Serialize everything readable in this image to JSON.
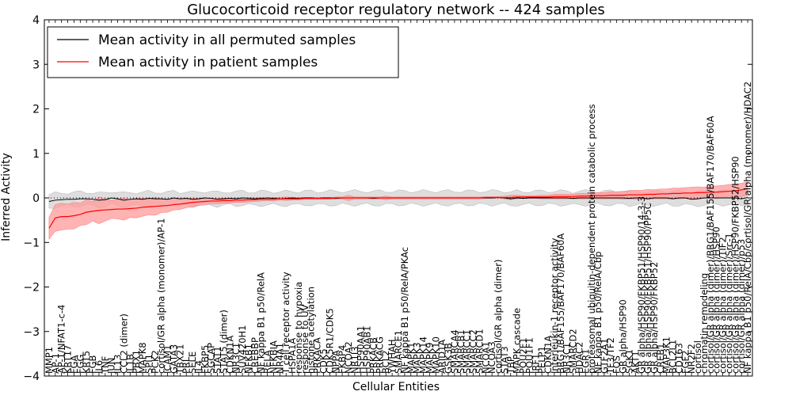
{
  "chart_data": {
    "type": "line",
    "title": "Glucocorticoid receptor regulatory network -- 424 samples",
    "xlabel": "Cellular Entities",
    "ylabel": "Inferred Activity",
    "ylim": [
      -4,
      4
    ],
    "yticks": [
      -4,
      -3,
      -2,
      -1,
      0,
      1,
      2,
      3,
      4
    ],
    "grid": false,
    "legend_position": "top-left",
    "legend": [
      "Mean activity in all permuted samples",
      "Mean activity in patient samples"
    ],
    "colors": {
      "permuted": "#000000",
      "patient": "#ff0000",
      "permuted_band": "#c8c8c8",
      "patient_band": "#ff9a9a"
    },
    "categories": [
      "MMP1",
      "AP-1",
      "AP-1/NFAT1-c-4",
      "KRT17",
      "FGA",
      "FGG",
      "KRT5",
      "FGB",
      "IL6",
      "TNF",
      "JUN",
      "IL13",
      "CCL2 (dimer)",
      "IL1B",
      "PBX1",
      "MAPK8",
      "SPI1",
      "PCK2",
      "cortisol/GR alpha (monomer)/AP-1",
      "ICAM1",
      "GATA3",
      "TBX21",
      "PRL",
      "SELE",
      "IL4",
      "FKBP5",
      "SGCAP",
      "STAT1",
      "STAT5 (dimer)",
      "CDKN1A",
      "NR3C1",
      "SUV420H1",
      "NFKB1",
      "CREBBP",
      "NF kappa B1 p50/RelA",
      "RELA",
      "NFKBIA",
      "NR4A1",
      "T cell receptor activity",
      "HSPA1A",
      "response to hypoxia",
      "response to UV",
      "histone acetylation",
      "PRKACA",
      "CDK5",
      "CDK5R1/CDK5",
      "NPPA",
      "FKBP4",
      "NCOA2",
      "NR1I3",
      "HSP90AA1",
      "HSP90AB1",
      "PRKACB",
      "PRKACG",
      "BCL2",
      "YWHAH",
      "SMARCE1",
      "NF kappa B1 p50/RelA/PKAc",
      "MAPK1",
      "MAPK3",
      "MAPK14",
      "MAPK9",
      "MAPK10",
      "ARID1A",
      "GSK3B",
      "SMARCA4",
      "SMARCB1",
      "SMARCC1",
      "SMARCC2",
      "SMARCD1",
      "NCOA1",
      "NCOA3",
      "cortisol/GR alpha (dimer)",
      "STAT3",
      "TBP",
      "MAPK cascade",
      "POU2F1",
      "POU1F1",
      "IRF1",
      "PELP1",
      "CDKN1A",
      "Interleukin-1 receptor activity",
      "BRG1/BAF155/BAF170/BAF60A",
      "NR3C1",
      "SMARCD2",
      "HDAC2",
      "EGR1",
      "proteasomal ubiquitin-dependent protein catabolic process",
      "NF kappa B1 p50/RelA/Cbp",
      "GTF2A1",
      "TF3/TF2",
      "FOS",
      "GR alpha/HSP90",
      "SGK1",
      "AKT1",
      "GR alpha/HSP90/FKBP51/HSP90/14-3-3",
      "GR alpha/HSP90/FKBP51/HSP90/PP5C",
      "GR alpha/HSP90/FKBP52",
      "CREB1",
      "MAP3K1",
      "BCL2L1",
      "CD163",
      "FGF2",
      "NR2F2",
      "cortisol",
      "chromatin remodeling",
      "cortisol/GR alpha (dimer)/BRG1/BAF155/BAF170/BAF60A",
      "cortisol/GR alpha (dimer)/HSP90",
      "cortisol/GR alpha (dimer)/TIF2",
      "cortisol/GR alpha (dimer)/Src-1",
      "cortisol/GR alpha (dimer)/HSP90/FKBP52/HSP90",
      "cortisol/GR alpha (dimer)/p53",
      "NF kappa B1 p50/RelA/Cbp/cortisol/GR alpha (monomer)/HDAC2"
    ],
    "series": [
      {
        "name": "Mean activity in all permuted samples",
        "values": [
          -0.08,
          -0.05,
          -0.04,
          -0.03,
          -0.03,
          -0.02,
          -0.02,
          -0.03,
          -0.05,
          -0.04,
          0.0,
          -0.02,
          -0.05,
          -0.03,
          -0.02,
          -0.03,
          -0.01,
          -0.02,
          -0.02,
          -0.03,
          0.0,
          -0.02,
          -0.01,
          -0.03,
          -0.02,
          0.0,
          -0.01,
          -0.03,
          -0.02,
          -0.01,
          -0.02,
          0.0,
          -0.01,
          -0.02,
          -0.01,
          0.0,
          -0.01,
          -0.02,
          -0.01,
          0.0,
          -0.01,
          0.0,
          0.0,
          -0.01,
          0.0,
          0.0,
          -0.01,
          0.0,
          0.0,
          0.0,
          0.0,
          0.0,
          -0.01,
          0.0,
          0.0,
          0.0,
          0.0,
          0.0,
          0.0,
          0.0,
          0.0,
          0.0,
          0.0,
          0.0,
          0.0,
          0.0,
          0.0,
          0.0,
          0.0,
          0.0,
          0.0,
          0.0,
          0.01,
          0.0,
          -0.02,
          0.0,
          -0.01,
          0.0,
          0.0,
          0.0,
          0.0,
          0.0,
          0.0,
          0.0,
          -0.01,
          0.0,
          0.0,
          0.0,
          0.0,
          0.0,
          0.0,
          0.0,
          0.0,
          -0.01,
          0.0,
          0.0,
          -0.02,
          0.0,
          0.0,
          0.0,
          -0.02,
          0.0,
          0.0,
          -0.03,
          -0.02,
          0.0,
          0.0,
          0.0,
          0.0,
          0.0,
          0.0,
          -0.02,
          0.01
        ]
      },
      {
        "name": "Mean activity in patient samples",
        "values": [
          -0.68,
          -0.45,
          -0.42,
          -0.42,
          -0.4,
          -0.37,
          -0.32,
          -0.3,
          -0.28,
          -0.27,
          -0.26,
          -0.25,
          -0.25,
          -0.24,
          -0.23,
          -0.21,
          -0.2,
          -0.19,
          -0.18,
          -0.17,
          -0.15,
          -0.14,
          -0.12,
          -0.1,
          -0.09,
          -0.08,
          -0.07,
          -0.07,
          -0.06,
          -0.06,
          -0.05,
          -0.05,
          -0.04,
          -0.04,
          -0.03,
          -0.03,
          -0.03,
          -0.02,
          -0.02,
          -0.02,
          -0.02,
          -0.01,
          -0.01,
          -0.01,
          -0.01,
          -0.01,
          0.0,
          0.0,
          0.0,
          0.0,
          0.0,
          0.0,
          0.0,
          0.0,
          0.0,
          0.0,
          0.0,
          0.0,
          0.0,
          0.0,
          0.0,
          0.0,
          0.0,
          0.0,
          0.0,
          0.0,
          0.0,
          0.0,
          0.0,
          0.0,
          0.01,
          0.01,
          0.01,
          0.01,
          0.01,
          0.02,
          0.02,
          0.02,
          0.02,
          0.02,
          0.02,
          0.03,
          0.03,
          0.03,
          0.03,
          0.04,
          0.04,
          0.05,
          0.05,
          0.05,
          0.06,
          0.06,
          0.06,
          0.07,
          0.07,
          0.07,
          0.08,
          0.08,
          0.09,
          0.09,
          0.1,
          0.1,
          0.11,
          0.11,
          0.12,
          0.12,
          0.13,
          0.13,
          0.14,
          0.15,
          0.16,
          0.18,
          0.21
        ]
      }
    ],
    "permuted_band_halfwidth": 0.15,
    "patient_band_halfwidth": [
      0.25,
      0.3,
      0.3,
      0.28,
      0.3,
      0.25,
      0.28,
      0.22,
      0.3,
      0.25,
      0.2,
      0.22,
      0.25,
      0.2,
      0.22,
      0.2,
      0.18,
      0.2,
      0.15,
      0.15,
      0.12,
      0.12,
      0.1,
      0.1,
      0.08,
      0.08,
      0.06,
      0.06,
      0.06,
      0.05,
      0.05,
      0.05,
      0.05,
      0.04,
      0.04,
      0.03,
      0.04,
      0.03,
      0.04,
      0.03,
      0.03,
      0.02,
      0.02,
      0.02,
      0.02,
      0.02,
      0.02,
      0.02,
      0.06,
      0.02,
      0.02,
      0.02,
      0.02,
      0.02,
      0.04,
      0.02,
      0.02,
      0.02,
      0.02,
      0.02,
      0.02,
      0.02,
      0.02,
      0.02,
      0.02,
      0.02,
      0.02,
      0.02,
      0.02,
      0.02,
      0.02,
      0.02,
      0.02,
      0.03,
      0.05,
      0.04,
      0.03,
      0.03,
      0.03,
      0.04,
      0.04,
      0.05,
      0.05,
      0.05,
      0.05,
      0.06,
      0.06,
      0.07,
      0.07,
      0.07,
      0.08,
      0.08,
      0.09,
      0.09,
      0.1,
      0.1,
      0.11,
      0.1,
      0.11,
      0.11,
      0.12,
      0.12,
      0.12,
      0.13,
      0.13,
      0.12,
      0.13,
      0.14,
      0.14,
      0.15,
      0.15,
      0.15,
      0.15
    ]
  }
}
